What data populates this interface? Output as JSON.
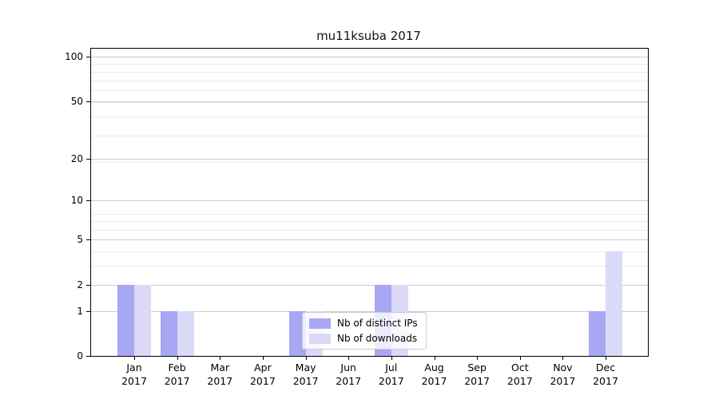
{
  "chart_data": {
    "type": "bar",
    "title": "mu11ksuba 2017",
    "year_label": "2017",
    "categories": [
      "Jan",
      "Feb",
      "Mar",
      "Apr",
      "May",
      "Jun",
      "Jul",
      "Aug",
      "Sep",
      "Oct",
      "Nov",
      "Dec"
    ],
    "series": [
      {
        "name": "Nb of distinct IPs",
        "color": "#a7a7f3",
        "values": [
          2,
          1,
          0,
          0,
          1,
          0,
          2,
          0,
          0,
          0,
          0,
          1
        ]
      },
      {
        "name": "Nb of downloads",
        "color": "#dadaf8",
        "values": [
          2,
          1,
          0,
          0,
          1,
          0,
          2,
          0,
          0,
          0,
          0,
          4
        ]
      }
    ],
    "y_scale": "log10(1+x)",
    "y_ticks": [
      0,
      1,
      2,
      5,
      10,
      20,
      50,
      100
    ],
    "y_minor_gridlines": [
      3,
      4,
      6,
      7,
      8,
      19,
      29,
      39,
      49,
      59,
      69,
      79,
      89
    ],
    "ylim": [
      0,
      110
    ],
    "grid": true,
    "legend": {
      "position": "lower-center",
      "entries": [
        "Nb of distinct IPs",
        "Nb of downloads"
      ]
    },
    "colors": {
      "major_grid": "#cccccc",
      "minor_grid": "#ebebeb",
      "spine": "#000000",
      "text": "#000000"
    }
  }
}
